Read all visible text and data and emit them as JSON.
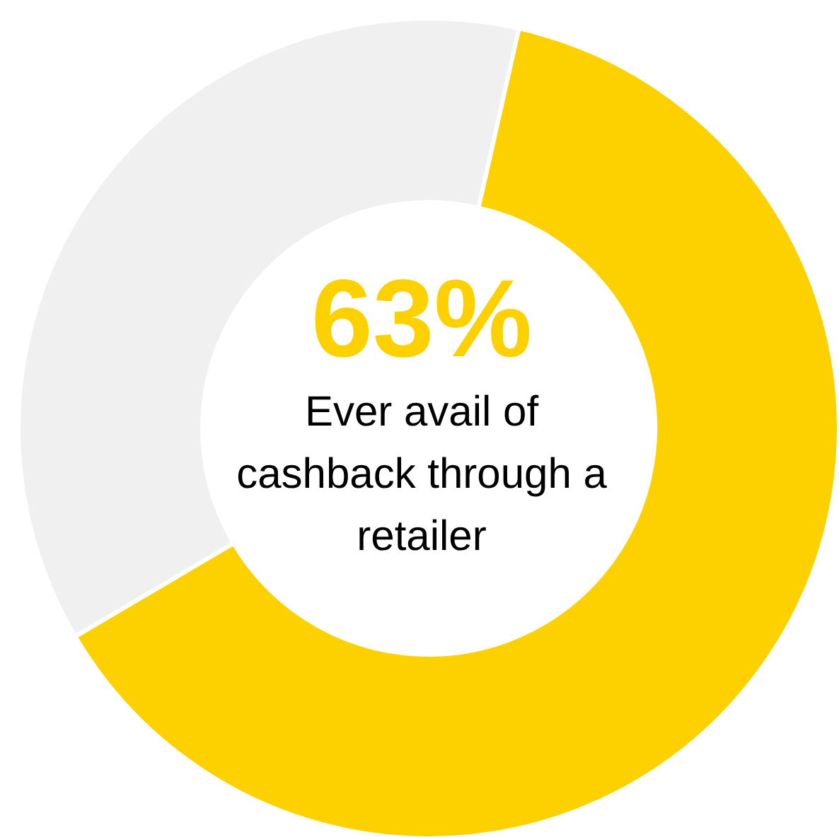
{
  "chart_data": {
    "type": "donut",
    "categories": [
      null,
      null
    ],
    "values": [
      63,
      37
    ],
    "colors": [
      "#fdd100",
      "#f0f0f0"
    ],
    "title": "63%",
    "annotations": [
      "Ever avail of cashback through a retailer"
    ]
  }
}
